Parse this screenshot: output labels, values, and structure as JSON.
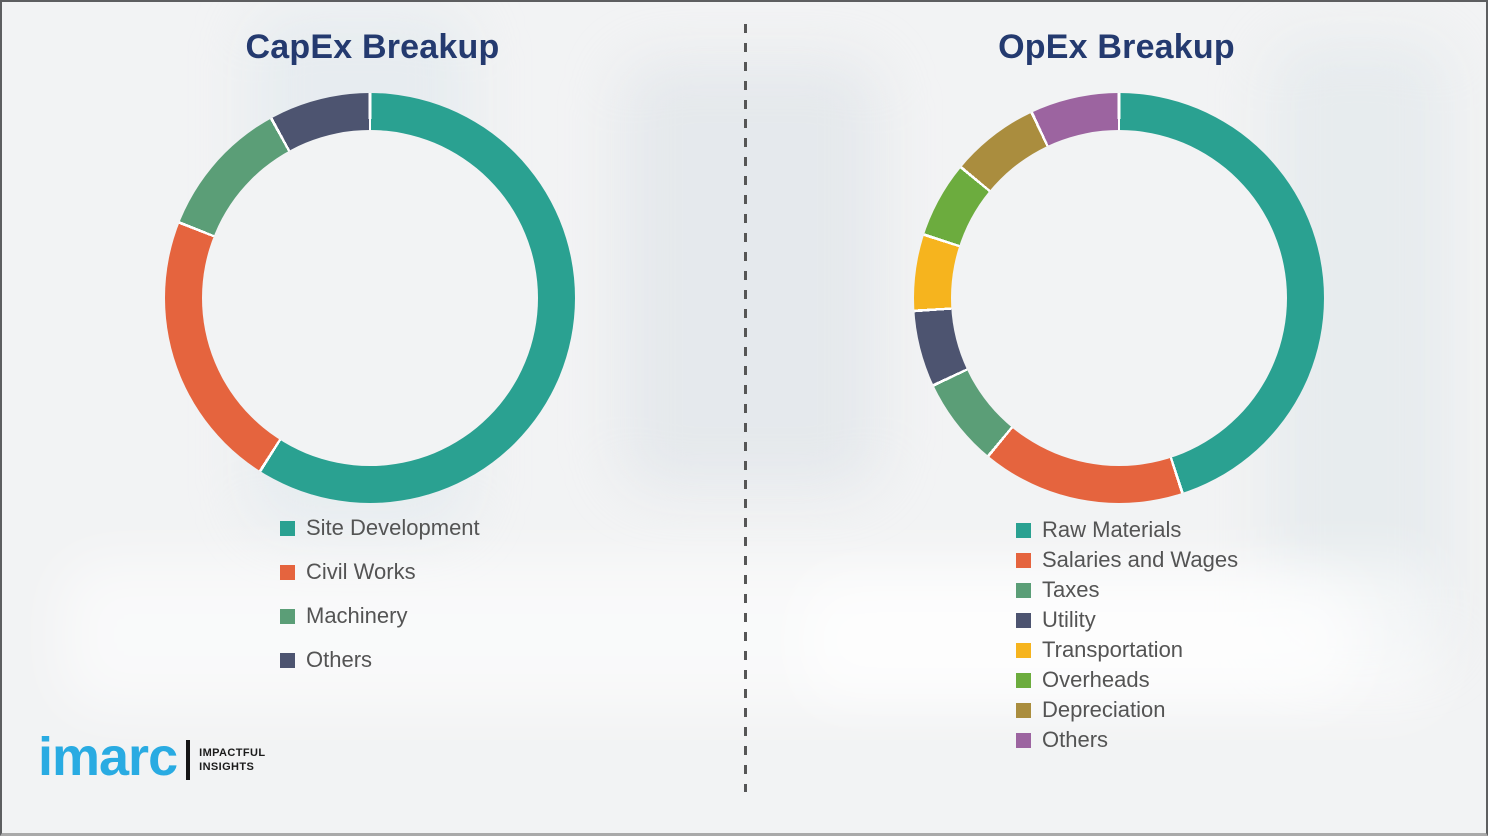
{
  "page": {
    "background": "#f2f3f4",
    "border_color": "#5d5e60",
    "divider_color": "#565656",
    "title_color": "#243a6f",
    "legend_text_color": "#545454",
    "slice_separator_color": "#ffffff"
  },
  "chart_data": [
    {
      "type": "pie",
      "subtype": "donut",
      "title": "CapEx Breakup",
      "labels": [
        "Site Development",
        "Civil Works",
        "Machinery",
        "Others"
      ],
      "values": [
        59,
        22,
        11,
        8
      ],
      "value_unit": "%",
      "colors": [
        "#2aa191",
        "#e5643e",
        "#5b9e77",
        "#4d5470"
      ],
      "start_angle_deg": 0,
      "direction": "clockwise",
      "legend_position": "below-left"
    },
    {
      "type": "pie",
      "subtype": "donut",
      "title": "OpEx Breakup",
      "labels": [
        "Raw Materials",
        "Salaries and Wages",
        "Taxes",
        "Utility",
        "Transportation",
        "Overheads",
        "Depreciation",
        "Others"
      ],
      "values": [
        45,
        16,
        7,
        6,
        6,
        6,
        7,
        7
      ],
      "value_unit": "%",
      "colors": [
        "#2aa191",
        "#e5643e",
        "#5b9e77",
        "#4d5470",
        "#f6b41e",
        "#6cac3e",
        "#aa8d3e",
        "#9c64a0"
      ],
      "start_angle_deg": 0,
      "direction": "clockwise",
      "legend_position": "below-left"
    }
  ],
  "logo": {
    "brand": "imarc",
    "brand_color": "#29abe2",
    "tagline_line1": "IMPACTFUL",
    "tagline_line2": "INSIGHTS"
  }
}
